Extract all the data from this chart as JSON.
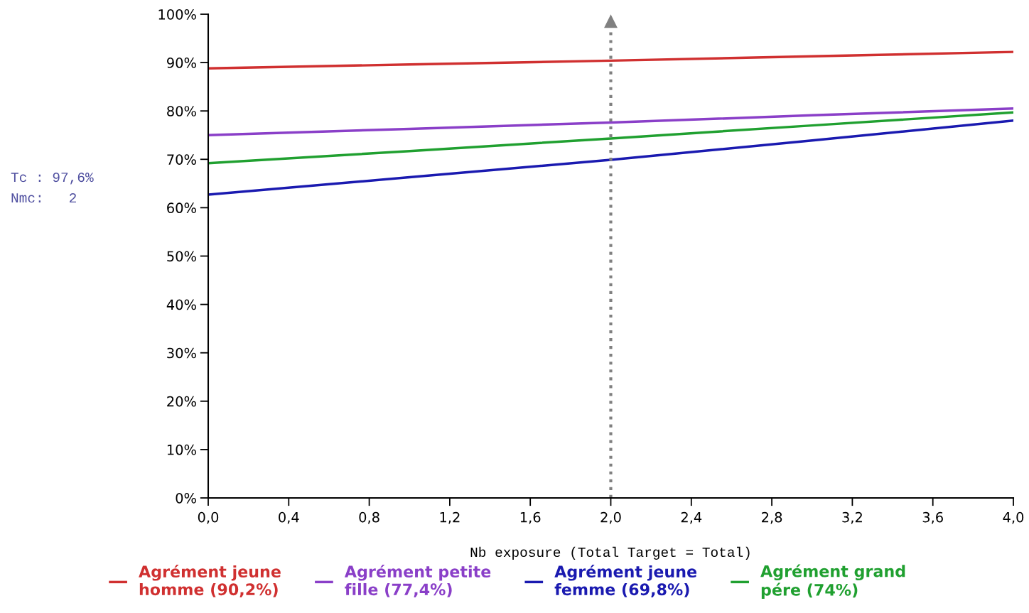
{
  "chart_data": {
    "type": "line",
    "xlabel": "Nb exposure (Total Target = Total)",
    "x": [
      0,
      1,
      2,
      3,
      4
    ],
    "series": [
      {
        "name": "Agrément jeune homme (90,2%)",
        "color": "#d03030",
        "values": [
          88.8,
          89.6,
          90.4,
          91.3,
          92.2
        ]
      },
      {
        "name": "Agrément petite fille (77,4%)",
        "color": "#8a3fc8",
        "values": [
          75.0,
          76.3,
          77.6,
          79.1,
          80.5
        ]
      },
      {
        "name": "Agrément jeune femme (69,8%)",
        "color": "#1a1ab0",
        "values": [
          62.7,
          66.3,
          69.9,
          73.9,
          78.0
        ]
      },
      {
        "name": "Agrément grand pére (74%)",
        "color": "#20a030",
        "values": [
          69.2,
          71.7,
          74.3,
          77.0,
          79.7
        ]
      }
    ],
    "xlim": [
      0,
      4
    ],
    "xticks": [
      {
        "value": 0,
        "label": "0,0"
      },
      {
        "value": 0.4,
        "label": "0,4"
      },
      {
        "value": 0.8,
        "label": "0,8"
      },
      {
        "value": 1.2,
        "label": "1,2"
      },
      {
        "value": 1.6,
        "label": "1,6"
      },
      {
        "value": 2,
        "label": "2,0"
      },
      {
        "value": 2.4,
        "label": "2,4"
      },
      {
        "value": 2.8,
        "label": "2,8"
      },
      {
        "value": 3.2,
        "label": "3,2"
      },
      {
        "value": 3.6,
        "label": "3,6"
      },
      {
        "value": 4,
        "label": "4,0"
      }
    ],
    "ylim": [
      0,
      100
    ],
    "yticks": [
      {
        "value": 0,
        "label": "0%"
      },
      {
        "value": 10,
        "label": "10%"
      },
      {
        "value": 20,
        "label": "20%"
      },
      {
        "value": 30,
        "label": "30%"
      },
      {
        "value": 40,
        "label": "40%"
      },
      {
        "value": 50,
        "label": "50%"
      },
      {
        "value": 60,
        "label": "60%"
      },
      {
        "value": 70,
        "label": "70%"
      },
      {
        "value": 80,
        "label": "80%"
      },
      {
        "value": 90,
        "label": "90%"
      },
      {
        "value": 100,
        "label": "100%"
      }
    ],
    "ref_lines": [
      {
        "axis": "x",
        "value": 2,
        "color": "#808080",
        "line_style": "dotted"
      }
    ],
    "annotations": [
      "Tc : 97,6%",
      "Nmc:   2"
    ],
    "grid": false,
    "legend": "bottom",
    "marker": "none",
    "line_style": "solid"
  }
}
